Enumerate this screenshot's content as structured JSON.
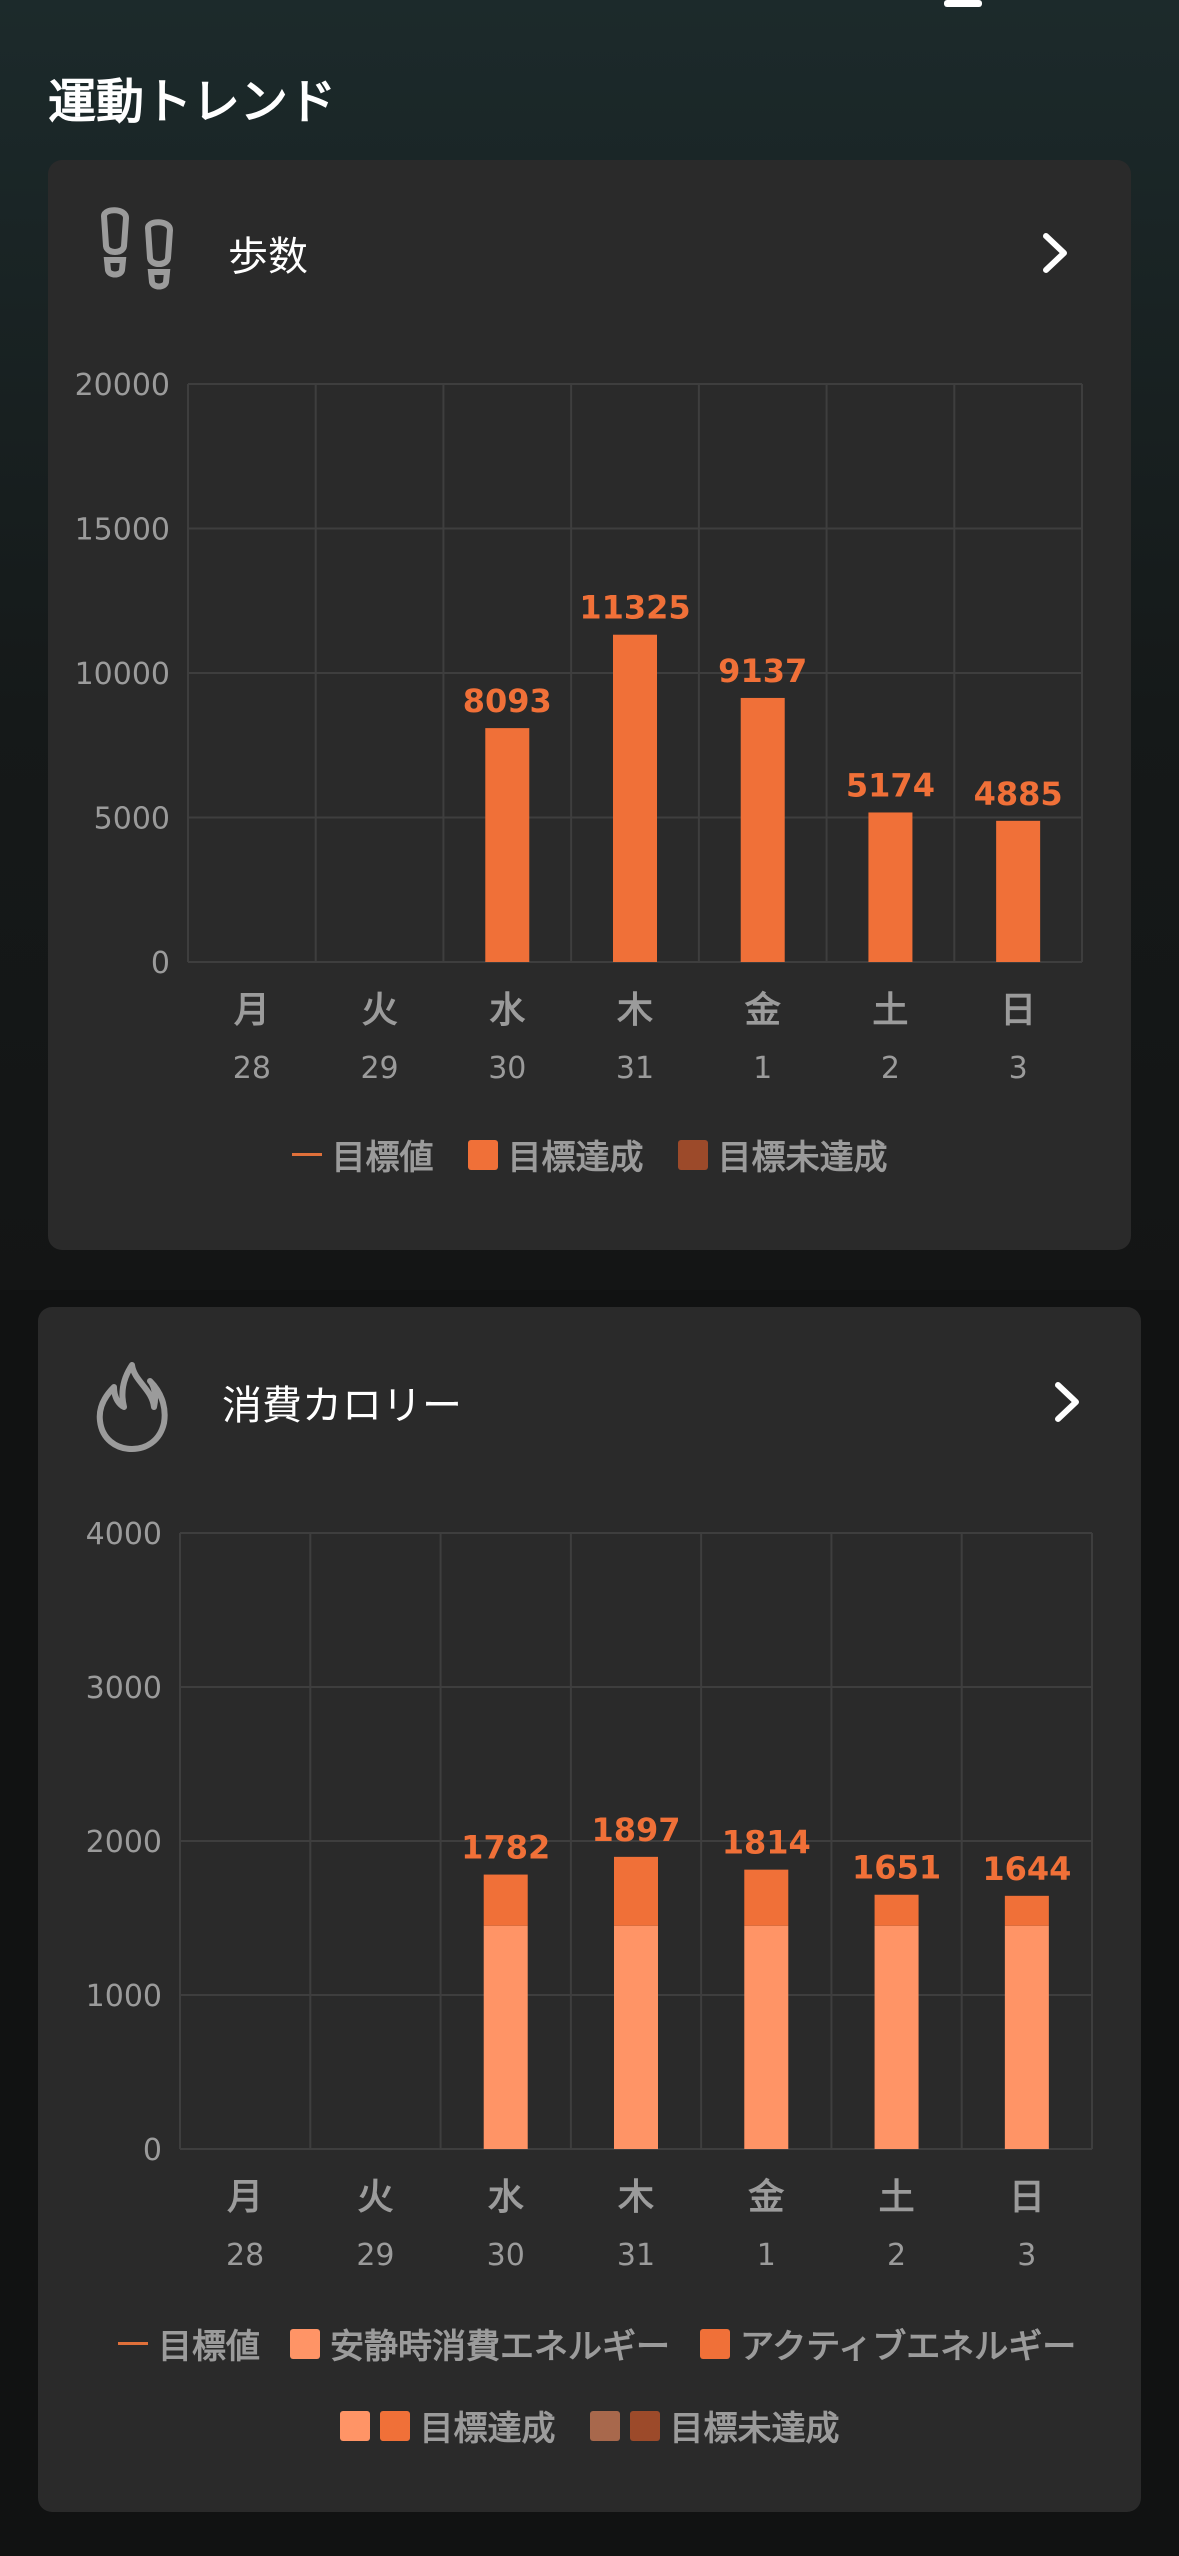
{
  "section_title": "運動トレンド",
  "colors": {
    "accent": "#f07038",
    "light": "#ff9466",
    "not_achieved": "#9c4a2a",
    "not_achieved_light": "#a8684c",
    "axis_text": "#9b9b9b",
    "card": "#2a2a2a"
  },
  "steps_card": {
    "title": "歩数",
    "icon": "footsteps-icon",
    "chart_data": {
      "type": "bar",
      "categories": [
        "月",
        "火",
        "水",
        "木",
        "金",
        "土",
        "日"
      ],
      "dates": [
        "28",
        "29",
        "30",
        "31",
        "1",
        "2",
        "3"
      ],
      "values": [
        null,
        null,
        8093,
        11325,
        9137,
        5174,
        4885
      ],
      "ylim": [
        0,
        20000
      ],
      "yticks": [
        "0",
        "5000",
        "10000",
        "15000",
        "20000"
      ],
      "grid": true
    },
    "legend": [
      "目標値",
      "目標達成",
      "目標未達成"
    ]
  },
  "calories_card": {
    "title": "消費カロリー",
    "icon": "flame-icon",
    "chart_data": {
      "type": "bar",
      "stacked": true,
      "categories": [
        "月",
        "火",
        "水",
        "木",
        "金",
        "土",
        "日"
      ],
      "dates": [
        "28",
        "29",
        "30",
        "31",
        "1",
        "2",
        "3"
      ],
      "series": [
        {
          "name": "安静時消費エネルギー",
          "values": [
            null,
            null,
            1450,
            1450,
            1450,
            1450,
            1450
          ]
        },
        {
          "name": "アクティブエネルギー",
          "values": [
            null,
            null,
            332,
            447,
            364,
            201,
            194
          ]
        }
      ],
      "totals": [
        null,
        null,
        1782,
        1897,
        1814,
        1651,
        1644
      ],
      "ylim": [
        0,
        4000
      ],
      "yticks": [
        "0",
        "1000",
        "2000",
        "3000",
        "4000"
      ],
      "grid": true
    },
    "legend_row1": [
      "目標値",
      "安静時消費エネルギー",
      "アクティブエネルギー"
    ],
    "legend_row2": [
      "目標達成",
      "目標未達成"
    ]
  }
}
